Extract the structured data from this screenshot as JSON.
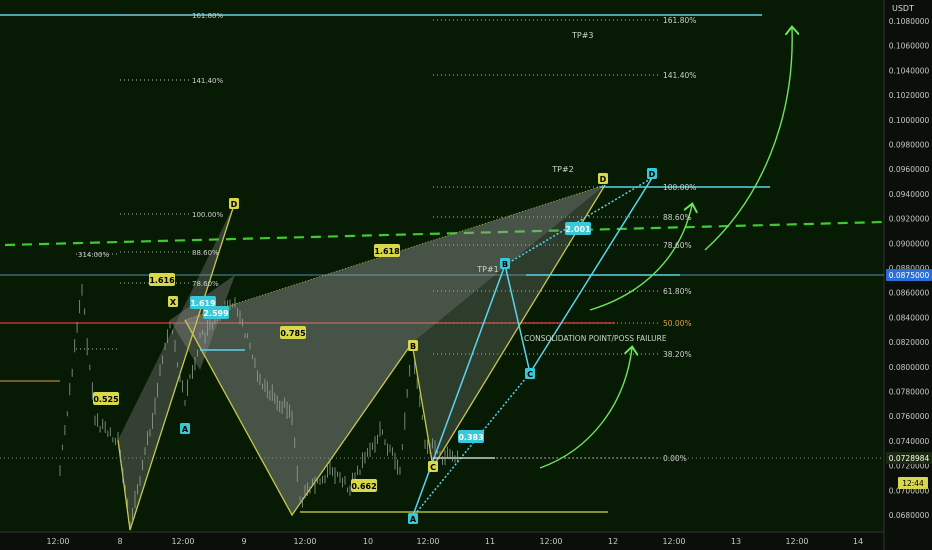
{
  "chart_data": {
    "type": "line",
    "title": "",
    "currency": "USDT",
    "y_ticks": [
      "0.1080000",
      "0.1060000",
      "0.1040000",
      "0.1020000",
      "0.1000000",
      "0.0980000",
      "0.0960000",
      "0.0940000",
      "0.0920000",
      "0.0900000",
      "0.0880000",
      "0.0860000",
      "0.0840000",
      "0.0820000",
      "0.0800000",
      "0.0780000",
      "0.0760000",
      "0.0740000",
      "0.0720000",
      "0.0700000",
      "0.0680000"
    ],
    "y_tick_values": [
      0.108,
      0.106,
      0.104,
      0.102,
      0.1,
      0.098,
      0.096,
      0.094,
      0.092,
      0.09,
      0.088,
      0.086,
      0.084,
      0.082,
      0.08,
      0.078,
      0.076,
      0.074,
      0.072,
      0.07,
      0.068
    ],
    "ylim": [
      0.067,
      0.109
    ],
    "x_ticks": [
      "12:00",
      "8",
      "12:00",
      "9",
      "12:00",
      "10",
      "12:00",
      "11",
      "12:00",
      "12",
      "12:00",
      "13",
      "12:00",
      "14"
    ],
    "price_badges": [
      {
        "text": "0.0875000",
        "value": 0.0875
      },
      {
        "text": "0.0728984",
        "value": 0.0728984
      },
      {
        "text": "12:44",
        "value": 0.0712
      }
    ],
    "fib_right": [
      {
        "label": "161.80%",
        "value": 0.108
      },
      {
        "label": "141.40%",
        "value": 0.1052
      },
      {
        "label": "100.00%",
        "value": 0.0952
      },
      {
        "label": "88.60%",
        "value": 0.0932
      },
      {
        "label": "78.60%",
        "value": 0.0907
      },
      {
        "label": "61.80%",
        "value": 0.0865
      },
      {
        "label": "50.00%",
        "value": 0.0838
      },
      {
        "label": "38.20%",
        "value": 0.0812
      },
      {
        "label": "0.00%",
        "value": 0.0728
      }
    ],
    "fib_left": [
      {
        "label": "161.80%",
        "value": 0.108
      },
      {
        "label": "141.40%",
        "value": 0.1035
      },
      {
        "label": "100.00%",
        "value": 0.093
      },
      {
        "label": "88.60%",
        "value": 0.0898
      },
      {
        "label": "78.60%",
        "value": 0.0872
      },
      {
        "label": "314.00%",
        "value": 0.0895
      }
    ],
    "annotations": [
      {
        "text": "TP#3"
      },
      {
        "text": "TP#2"
      },
      {
        "text": "TP#1"
      },
      {
        "text": "CONSOLIDATION POINT/POSS FAILURE"
      }
    ],
    "ratio_labels": [
      {
        "text": "1.618"
      },
      {
        "text": "1.616"
      },
      {
        "text": "1.619"
      },
      {
        "text": "2.599"
      },
      {
        "text": "0.785"
      },
      {
        "text": "2.001"
      },
      {
        "text": "0.383"
      },
      {
        "text": "0.662"
      },
      {
        "text": "0.525"
      }
    ],
    "points": [
      {
        "text": "D"
      },
      {
        "text": "D"
      },
      {
        "text": "D"
      },
      {
        "text": "B"
      },
      {
        "text": "B"
      },
      {
        "text": "C"
      },
      {
        "text": "A"
      },
      {
        "text": "C"
      },
      {
        "text": "X"
      },
      {
        "text": "A"
      }
    ]
  }
}
